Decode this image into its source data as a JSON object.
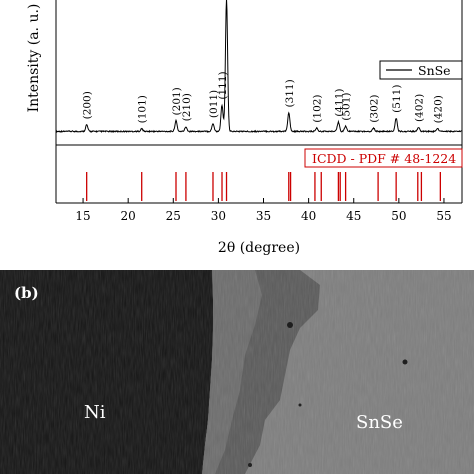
{
  "panel_b": {
    "panel_label": "(b)",
    "ni_label": "Ni",
    "snse_label": "SnSe"
  },
  "chart_data": {
    "type": "line",
    "xlabel": "2θ (degree)",
    "ylabel": "Intensity (a. u.)",
    "xlim": [
      12,
      57
    ],
    "xticks": [
      15,
      20,
      25,
      30,
      35,
      40,
      45,
      50,
      55
    ],
    "legend": {
      "entries": [
        "SnSe"
      ],
      "placement": "right"
    },
    "colors": {
      "pattern": "#000000",
      "reference": "#cc0000"
    },
    "series": [
      {
        "name": "SnSe",
        "peaks": [
          {
            "x": 15.4,
            "height": 0.05
          },
          {
            "x": 21.5,
            "height": 0.02
          },
          {
            "x": 25.3,
            "height": 0.08
          },
          {
            "x": 26.4,
            "height": 0.035
          },
          {
            "x": 29.4,
            "height": 0.06
          },
          {
            "x": 30.4,
            "height": 0.2
          },
          {
            "x": 30.9,
            "height": 1.0
          },
          {
            "x": 37.8,
            "height": 0.14
          },
          {
            "x": 40.9,
            "height": 0.025
          },
          {
            "x": 43.3,
            "height": 0.07
          },
          {
            "x": 44.1,
            "height": 0.04
          },
          {
            "x": 47.2,
            "height": 0.025
          },
          {
            "x": 49.7,
            "height": 0.1
          },
          {
            "x": 52.2,
            "height": 0.03
          },
          {
            "x": 54.3,
            "height": 0.02
          }
        ]
      }
    ],
    "annotations": [
      {
        "text": "(200)",
        "x": 15.4
      },
      {
        "text": "(101)",
        "x": 21.5
      },
      {
        "text": "(201)",
        "x": 25.3
      },
      {
        "text": "(210)",
        "x": 26.4
      },
      {
        "text": "(011)",
        "x": 29.4
      },
      {
        "text": "(111)",
        "x": 30.4
      },
      {
        "text": "(311)",
        "x": 37.8
      },
      {
        "text": "(102)",
        "x": 40.9
      },
      {
        "text": "(411)",
        "x": 43.3
      },
      {
        "text": "(501)",
        "x": 44.1
      },
      {
        "text": "(302)",
        "x": 47.2
      },
      {
        "text": "(511)",
        "x": 49.7
      },
      {
        "text": "(402)",
        "x": 52.2
      },
      {
        "text": "(420)",
        "x": 54.3
      }
    ],
    "reference": {
      "label": "ICDD - PDF # 48-1224",
      "lines": [
        15.4,
        21.5,
        25.3,
        26.4,
        29.4,
        30.4,
        30.9,
        37.8,
        38.0,
        40.7,
        41.4,
        43.3,
        43.5,
        44.1,
        47.7,
        49.7,
        52.1,
        52.5,
        54.6
      ]
    }
  }
}
